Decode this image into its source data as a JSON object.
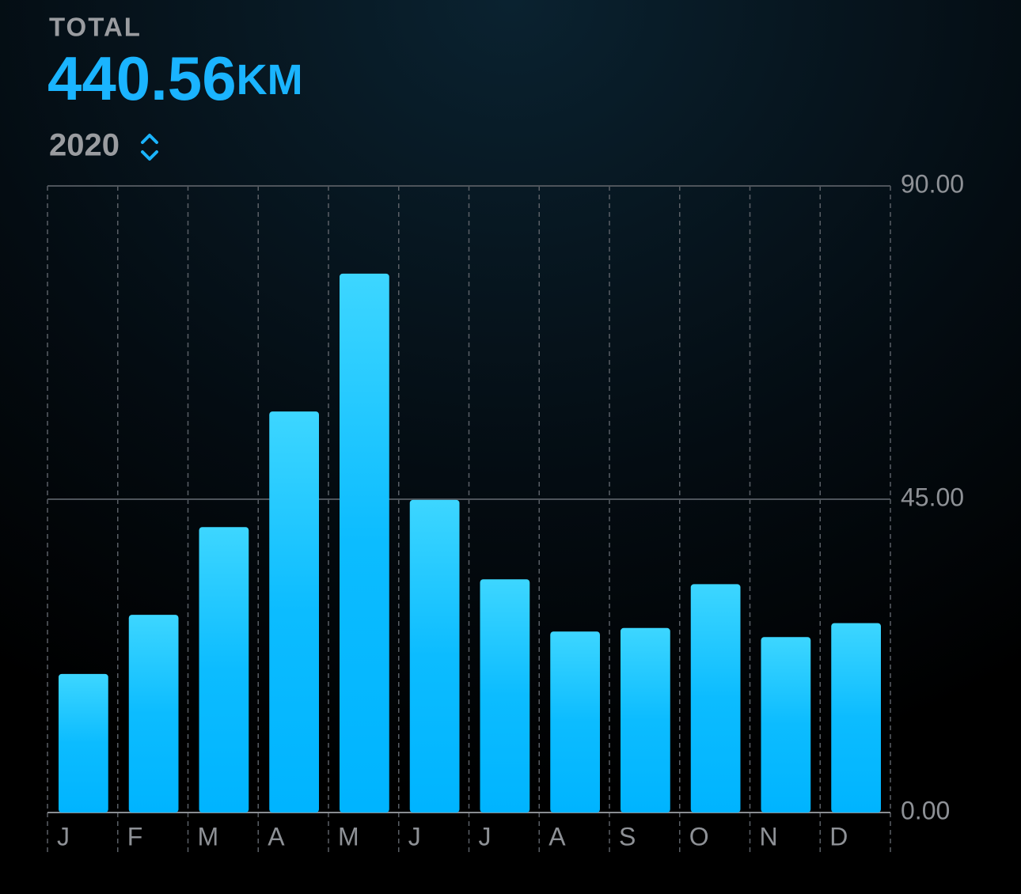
{
  "chart_data": {
    "type": "bar",
    "title": "TOTAL",
    "total_value": "440.56",
    "total_unit": "KM",
    "period": "2020",
    "categories": [
      "J",
      "F",
      "M",
      "A",
      "M",
      "J",
      "J",
      "A",
      "S",
      "O",
      "N",
      "D"
    ],
    "values": [
      19.9,
      28.4,
      41.0,
      57.6,
      77.4,
      44.9,
      33.5,
      26.0,
      26.5,
      32.8,
      25.2,
      27.2
    ],
    "color": "#00b4ff",
    "ylim": [
      0,
      90
    ],
    "yticks": [
      {
        "value": 0,
        "label": "0.00"
      },
      {
        "value": 45,
        "label": "45.00"
      },
      {
        "value": 90,
        "label": "90.00"
      }
    ],
    "grid": true
  }
}
